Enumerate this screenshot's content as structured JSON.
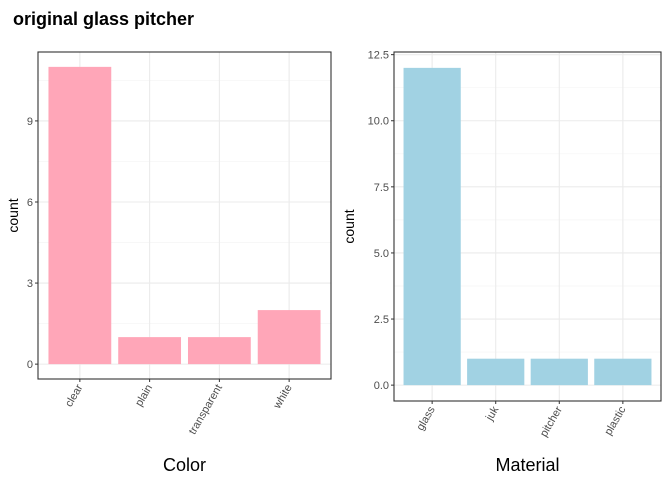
{
  "title": "original glass pitcher",
  "colors": {
    "panel_border": "#333333",
    "grid_major": "#ebebeb",
    "grid_minor": "#f5f5f5",
    "tick": "#333333"
  },
  "chart_data": [
    {
      "type": "bar",
      "categories": [
        "clear",
        "plain",
        "transparent",
        "white"
      ],
      "values": [
        11,
        1,
        1,
        2
      ],
      "xlabel": "Color",
      "ylabel": "count",
      "ylim": [
        -0.55,
        11.55
      ],
      "yticks": [
        0,
        3,
        6,
        9
      ],
      "ytick_labels": [
        "0",
        "3",
        "6",
        "9"
      ],
      "bar_color": "#ffa6b8",
      "tick_label_rotation": -60,
      "grid": true
    },
    {
      "type": "bar",
      "categories": [
        "glass",
        "juk",
        "pitcher",
        "plastic"
      ],
      "values": [
        12,
        1,
        1,
        1
      ],
      "xlabel": "Material",
      "ylabel": "count",
      "ylim": [
        -0.6,
        12.6
      ],
      "yticks": [
        0,
        2.5,
        5,
        7.5,
        10,
        12.5
      ],
      "ytick_labels": [
        "0.0",
        "2.5",
        "5.0",
        "7.5",
        "10.0",
        "12.5"
      ],
      "bar_color": "#a1d2e3",
      "tick_label_rotation": -60,
      "grid": true
    }
  ]
}
